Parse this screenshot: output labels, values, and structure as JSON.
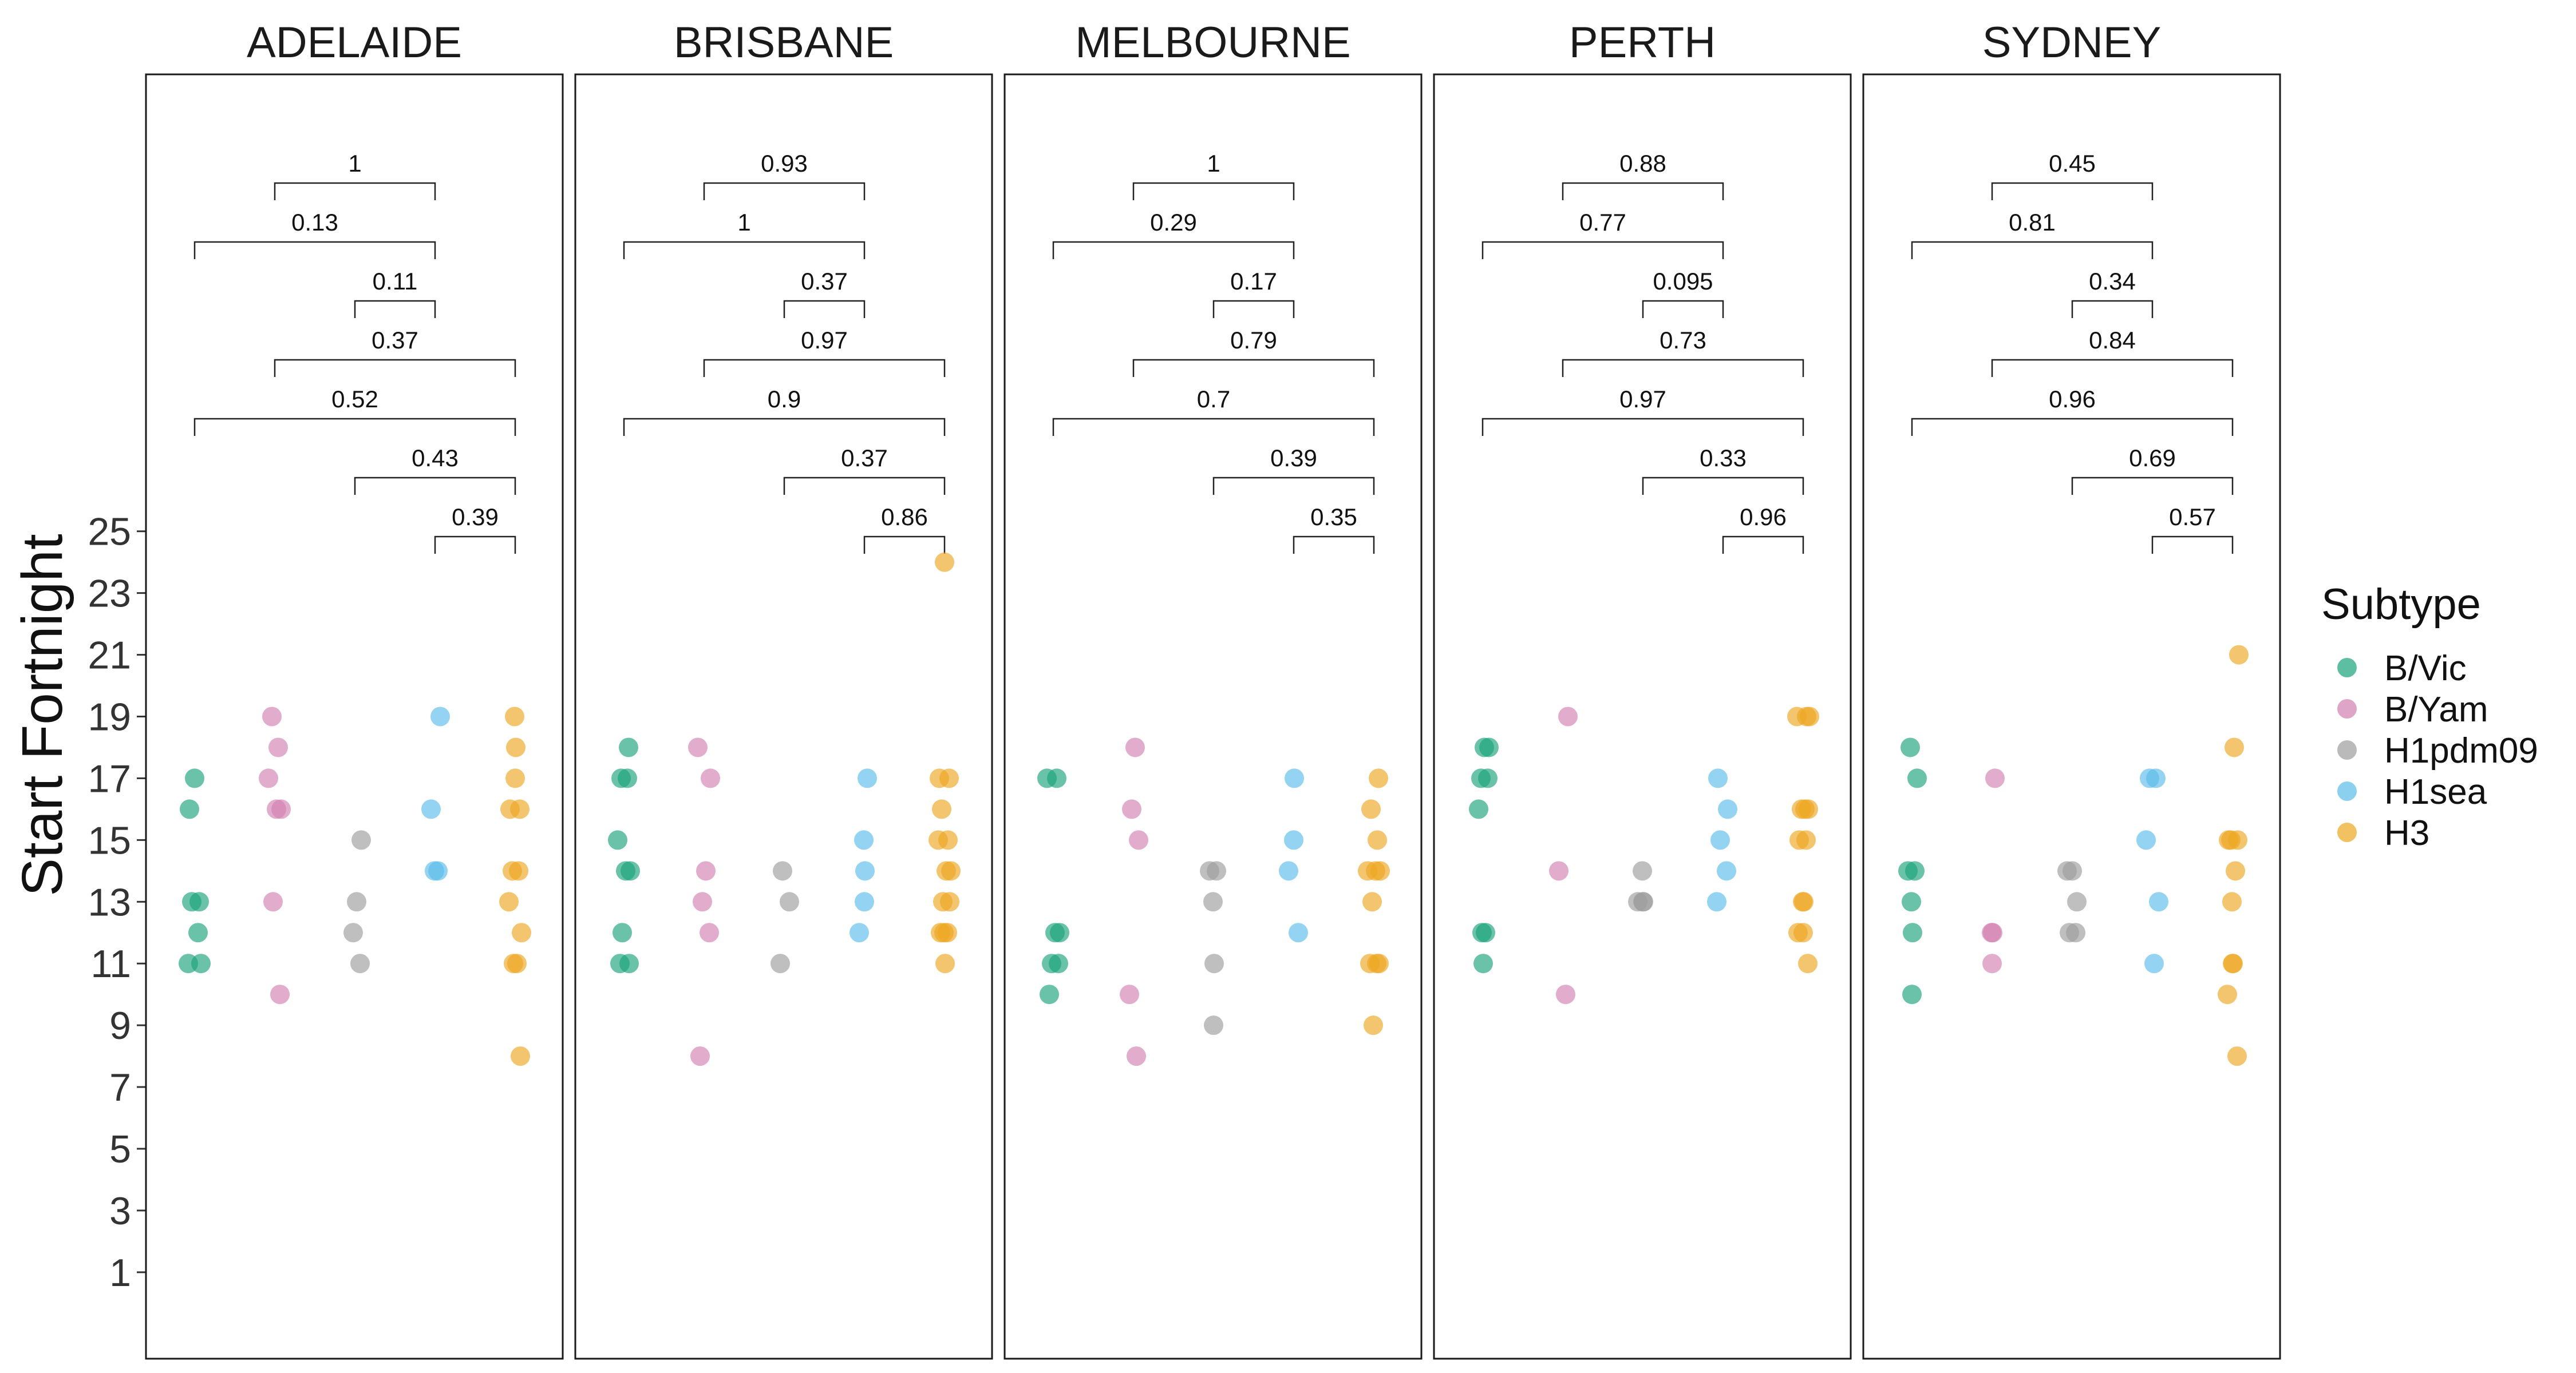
{
  "chart_data": {
    "type": "scatter",
    "ylabel": "Start Fortnight",
    "yticks": [
      1,
      3,
      5,
      7,
      9,
      11,
      13,
      15,
      17,
      19,
      21,
      23,
      25
    ],
    "ylim": [
      -1.8,
      39.8
    ],
    "legend": {
      "title": "Subtype",
      "position": "right",
      "entries": [
        {
          "name": "B/Vic",
          "color": "#1aa37a"
        },
        {
          "name": "B/Yam",
          "color": "#d27fb0"
        },
        {
          "name": "H1pdm09",
          "color": "#9d9d9d"
        },
        {
          "name": "H1sea",
          "color": "#5bbcea"
        },
        {
          "name": "H3",
          "color": "#eda620"
        }
      ]
    },
    "categories": [
      "B/Vic",
      "B/Yam",
      "H1pdm09",
      "H1sea",
      "H3"
    ],
    "panels": [
      {
        "title": "ADELAIDE",
        "points": {
          "B/Vic": [
            17,
            16,
            13,
            13,
            12,
            11,
            11
          ],
          "B/Yam": [
            19,
            18,
            17,
            16,
            16,
            13,
            10
          ],
          "H1pdm09": [
            15,
            13,
            12,
            11
          ],
          "H1sea": [
            19,
            16,
            14,
            14
          ],
          "H3": [
            19,
            18,
            17,
            16,
            16,
            14,
            14,
            13,
            12,
            11,
            11,
            8
          ]
        },
        "comparisons": [
          {
            "groups": [
              "B/Yam",
              "H1sea"
            ],
            "p": "1"
          },
          {
            "groups": [
              "B/Vic",
              "H1sea"
            ],
            "p": "0.13"
          },
          {
            "groups": [
              "H1pdm09",
              "H1sea"
            ],
            "p": "0.11"
          },
          {
            "groups": [
              "B/Yam",
              "H3"
            ],
            "p": "0.37"
          },
          {
            "groups": [
              "B/Vic",
              "H3"
            ],
            "p": "0.52"
          },
          {
            "groups": [
              "H1pdm09",
              "H3"
            ],
            "p": "0.43"
          },
          {
            "groups": [
              "H1sea",
              "H3"
            ],
            "p": "0.39"
          }
        ]
      },
      {
        "title": "BRISBANE",
        "points": {
          "B/Vic": [
            18,
            17,
            17,
            15,
            14,
            14,
            12,
            11,
            11
          ],
          "B/Yam": [
            18,
            17,
            14,
            13,
            12,
            8
          ],
          "H1pdm09": [
            14,
            13,
            11
          ],
          "H1sea": [
            17,
            15,
            14,
            13,
            12
          ],
          "H3": [
            24,
            17,
            17,
            16,
            15,
            15,
            14,
            14,
            13,
            13,
            12,
            12,
            12,
            11
          ]
        },
        "comparisons": [
          {
            "groups": [
              "B/Yam",
              "H1sea"
            ],
            "p": "0.93"
          },
          {
            "groups": [
              "B/Vic",
              "H1sea"
            ],
            "p": "1"
          },
          {
            "groups": [
              "H1pdm09",
              "H1sea"
            ],
            "p": "0.37"
          },
          {
            "groups": [
              "B/Yam",
              "H3"
            ],
            "p": "0.97"
          },
          {
            "groups": [
              "B/Vic",
              "H3"
            ],
            "p": "0.9"
          },
          {
            "groups": [
              "H1pdm09",
              "H3"
            ],
            "p": "0.37"
          },
          {
            "groups": [
              "H1sea",
              "H3"
            ],
            "p": "0.86"
          }
        ]
      },
      {
        "title": "MELBOURNE",
        "points": {
          "B/Vic": [
            17,
            17,
            12,
            12,
            11,
            11,
            10
          ],
          "B/Yam": [
            18,
            16,
            15,
            10,
            8
          ],
          "H1pdm09": [
            14,
            14,
            13,
            11,
            9
          ],
          "H1sea": [
            17,
            15,
            14,
            12
          ],
          "H3": [
            17,
            16,
            15,
            14,
            14,
            14,
            13,
            11,
            11,
            11,
            9
          ]
        },
        "comparisons": [
          {
            "groups": [
              "B/Yam",
              "H1sea"
            ],
            "p": "1"
          },
          {
            "groups": [
              "B/Vic",
              "H1sea"
            ],
            "p": "0.29"
          },
          {
            "groups": [
              "H1pdm09",
              "H1sea"
            ],
            "p": "0.17"
          },
          {
            "groups": [
              "B/Yam",
              "H3"
            ],
            "p": "0.79"
          },
          {
            "groups": [
              "B/Vic",
              "H3"
            ],
            "p": "0.7"
          },
          {
            "groups": [
              "H1pdm09",
              "H3"
            ],
            "p": "0.39"
          },
          {
            "groups": [
              "H1sea",
              "H3"
            ],
            "p": "0.35"
          }
        ]
      },
      {
        "title": "PERTH",
        "points": {
          "B/Vic": [
            18,
            18,
            17,
            17,
            16,
            12,
            12,
            11
          ],
          "B/Yam": [
            19,
            14,
            10
          ],
          "H1pdm09": [
            14,
            13,
            13,
            13
          ],
          "H1sea": [
            17,
            16,
            15,
            14,
            13
          ],
          "H3": [
            19,
            19,
            19,
            16,
            16,
            16,
            15,
            15,
            13,
            13,
            12,
            12,
            11
          ]
        },
        "comparisons": [
          {
            "groups": [
              "B/Yam",
              "H1sea"
            ],
            "p": "0.88"
          },
          {
            "groups": [
              "B/Vic",
              "H1sea"
            ],
            "p": "0.77"
          },
          {
            "groups": [
              "H1pdm09",
              "H1sea"
            ],
            "p": "0.095"
          },
          {
            "groups": [
              "B/Yam",
              "H3"
            ],
            "p": "0.73"
          },
          {
            "groups": [
              "B/Vic",
              "H3"
            ],
            "p": "0.97"
          },
          {
            "groups": [
              "H1pdm09",
              "H3"
            ],
            "p": "0.33"
          },
          {
            "groups": [
              "H1sea",
              "H3"
            ],
            "p": "0.96"
          }
        ]
      },
      {
        "title": "SYDNEY",
        "points": {
          "B/Vic": [
            18,
            17,
            14,
            14,
            13,
            12,
            10
          ],
          "B/Yam": [
            17,
            12,
            12,
            11
          ],
          "H1pdm09": [
            14,
            14,
            13,
            12,
            12
          ],
          "H1sea": [
            17,
            17,
            15,
            13,
            11
          ],
          "H3": [
            21,
            18,
            15,
            15,
            15,
            14,
            13,
            11,
            11,
            10,
            8
          ]
        },
        "comparisons": [
          {
            "groups": [
              "B/Yam",
              "H1sea"
            ],
            "p": "0.45"
          },
          {
            "groups": [
              "B/Vic",
              "H1sea"
            ],
            "p": "0.81"
          },
          {
            "groups": [
              "H1pdm09",
              "H1sea"
            ],
            "p": "0.34"
          },
          {
            "groups": [
              "B/Yam",
              "H3"
            ],
            "p": "0.84"
          },
          {
            "groups": [
              "B/Vic",
              "H3"
            ],
            "p": "0.96"
          },
          {
            "groups": [
              "H1pdm09",
              "H3"
            ],
            "p": "0.69"
          },
          {
            "groups": [
              "H1sea",
              "H3"
            ],
            "p": "0.57"
          }
        ]
      }
    ]
  }
}
